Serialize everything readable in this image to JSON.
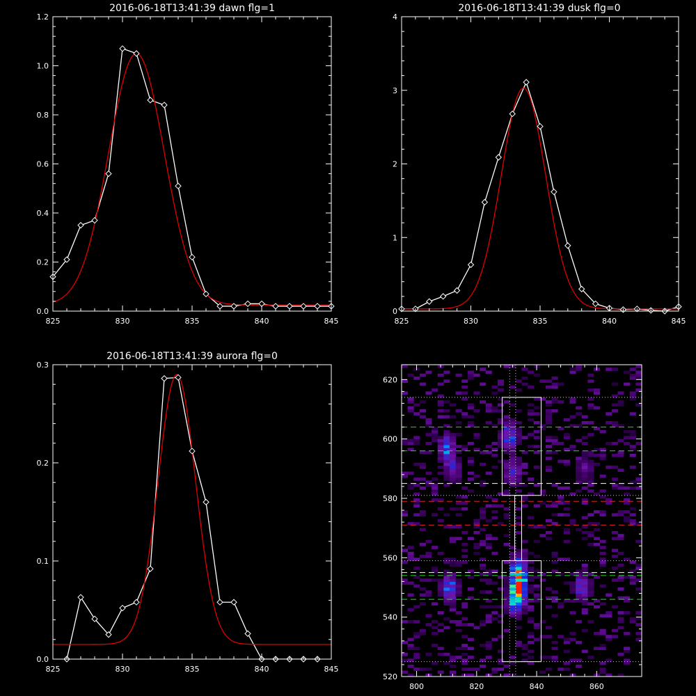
{
  "chart_data": [
    {
      "type": "line",
      "title": "2016-06-18T13:41:39 dawn flg=1",
      "xlim": [
        825,
        845
      ],
      "ylim": [
        0,
        1.2
      ],
      "xticks": [
        825,
        830,
        835,
        840,
        845
      ],
      "xtick_labels": [
        "825",
        "830",
        "835",
        "840",
        "845"
      ],
      "yticks": [
        0,
        0.2,
        0.4,
        0.6,
        0.8,
        1.0,
        1.2
      ],
      "ytick_labels": [
        "0.0",
        "0.2",
        "0.4",
        "0.6",
        "0.8",
        "1.0",
        "1.2"
      ],
      "series": [
        {
          "color": "#ffffff",
          "marker": "diamond",
          "x": [
            825,
            826,
            827,
            828,
            829,
            830,
            831,
            832,
            833,
            834,
            835,
            836,
            837,
            838,
            839,
            840,
            841,
            842,
            843,
            844,
            845
          ],
          "y": [
            0.14,
            0.21,
            0.35,
            0.37,
            0.56,
            1.07,
            1.05,
            0.86,
            0.84,
            0.51,
            0.22,
            0.07,
            0.02,
            0.02,
            0.03,
            0.03,
            0.02,
            0.02,
            0.02,
            0.02,
            0.02
          ]
        },
        {
          "color": "#e00000",
          "model": "gauss",
          "amp": 1.025,
          "center": 831.0,
          "sigma": 2.0,
          "base": 0.025
        }
      ]
    },
    {
      "type": "line",
      "title": "2016-06-18T13:41:39 dusk flg=0",
      "xlim": [
        825,
        845
      ],
      "ylim": [
        0,
        4
      ],
      "xticks": [
        825,
        830,
        835,
        840,
        845
      ],
      "xtick_labels": [
        "825",
        "830",
        "835",
        "840",
        "845"
      ],
      "yticks": [
        0,
        1,
        2,
        3,
        4
      ],
      "ytick_labels": [
        "0",
        "1",
        "2",
        "3",
        "4"
      ],
      "series": [
        {
          "color": "#ffffff",
          "marker": "diamond",
          "x": [
            825,
            826,
            827,
            828,
            829,
            830,
            831,
            832,
            833,
            834,
            835,
            836,
            837,
            838,
            839,
            840,
            841,
            842,
            843,
            844,
            845
          ],
          "y": [
            0.03,
            0.03,
            0.13,
            0.2,
            0.28,
            0.63,
            1.48,
            2.09,
            2.68,
            3.11,
            2.51,
            1.62,
            0.89,
            0.3,
            0.1,
            0.04,
            0.02,
            0.03,
            0.01,
            -0.03,
            0.06
          ]
        },
        {
          "color": "#e00000",
          "model": "gauss",
          "amp": 3.0,
          "center": 833.8,
          "sigma": 1.6,
          "base": 0.03
        }
      ]
    },
    {
      "type": "line",
      "title": "2016-06-18T13:41:39 aurora flg=0",
      "xlim": [
        825,
        845
      ],
      "ylim": [
        0,
        0.3
      ],
      "xticks": [
        825,
        830,
        835,
        840,
        845
      ],
      "xtick_labels": [
        "825",
        "830",
        "835",
        "840",
        "845"
      ],
      "yticks": [
        0,
        0.1,
        0.2,
        0.3
      ],
      "ytick_labels": [
        "0.0",
        "0.1",
        "0.2",
        "0.3"
      ],
      "series": [
        {
          "color": "#ffffff",
          "marker": "diamond",
          "x": [
            826,
            827,
            828,
            829,
            830,
            831,
            832,
            833,
            834,
            835,
            836,
            837,
            838,
            839,
            840,
            841,
            842,
            843,
            844
          ],
          "y": [
            0.0,
            0.063,
            0.041,
            0.025,
            0.052,
            0.058,
            0.092,
            0.286,
            0.287,
            0.212,
            0.16,
            0.058,
            0.058,
            0.026,
            0.0,
            0.0,
            0.0,
            0.0,
            0.0
          ]
        },
        {
          "color": "#e00000",
          "model": "gauss",
          "amp": 0.275,
          "center": 833.9,
          "sigma": 1.35,
          "base": 0.015
        }
      ]
    },
    {
      "type": "heatmap",
      "xlim": [
        795,
        875
      ],
      "ylim": [
        520,
        625
      ],
      "xticks": [
        800,
        820,
        840,
        860
      ],
      "xtick_labels": [
        "800",
        "820",
        "840",
        "860"
      ],
      "yticks": [
        520,
        540,
        560,
        580,
        600,
        620
      ],
      "ytick_labels": [
        "520",
        "540",
        "560",
        "580",
        "600",
        "620"
      ],
      "hot_spots": [
        {
          "x": 810,
          "y": 597,
          "level": 0.55
        },
        {
          "x": 812,
          "y": 590,
          "level": 0.4
        },
        {
          "x": 811,
          "y": 550,
          "level": 0.6
        },
        {
          "x": 831,
          "y": 601,
          "level": 0.55
        },
        {
          "x": 832,
          "y": 589,
          "level": 0.45
        },
        {
          "x": 834,
          "y": 550,
          "level": 1.0
        },
        {
          "x": 834,
          "y": 556,
          "level": 0.7
        },
        {
          "x": 833,
          "y": 545,
          "level": 0.55
        },
        {
          "x": 855,
          "y": 550,
          "level": 0.5
        },
        {
          "x": 856,
          "y": 590,
          "level": 0.25
        }
      ],
      "boxes": [
        {
          "x0": 828.5,
          "x1": 841.5,
          "y0": 581,
          "y1": 614,
          "color": "#ffffff"
        },
        {
          "x0": 828.5,
          "x1": 841.5,
          "y0": 525,
          "y1": 559,
          "color": "#ffffff"
        },
        {
          "x0": 832.7,
          "x1": 835,
          "y0": 559,
          "y1": 581,
          "color": "#ffffff"
        }
      ],
      "hlines": [
        {
          "y": 614,
          "color": "#cccccc",
          "style": "dotted"
        },
        {
          "y": 604,
          "color": "#22dd22",
          "style": "dashed"
        },
        {
          "y": 596,
          "color": "#22dd22",
          "style": "dashed"
        },
        {
          "y": 585,
          "color": "#ffffff",
          "style": "dashed"
        },
        {
          "y": 581,
          "color": "#cccccc",
          "style": "dotted"
        },
        {
          "y": 579,
          "color": "#dd2222",
          "style": "dashed"
        },
        {
          "y": 571,
          "color": "#dd2222",
          "style": "dashed"
        },
        {
          "y": 559,
          "color": "#cccccc",
          "style": "dotted"
        },
        {
          "y": 555,
          "color": "#ffffff",
          "style": "dashed"
        },
        {
          "y": 554,
          "color": "#22dd22",
          "style": "dashed"
        },
        {
          "y": 546,
          "color": "#22dd22",
          "style": "dashed"
        },
        {
          "y": 525,
          "color": "#cccccc",
          "style": "dotted"
        }
      ],
      "vlines": [
        {
          "x": 831,
          "color": "#cccccc",
          "style": "dotted"
        },
        {
          "x": 833,
          "color": "#cccccc",
          "style": "dotted"
        }
      ]
    }
  ]
}
